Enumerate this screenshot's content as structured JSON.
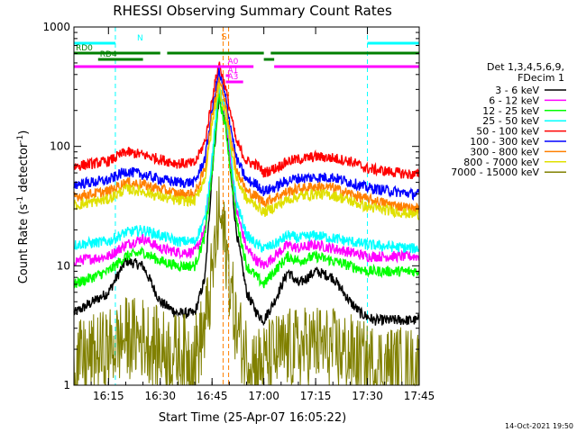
{
  "chart_data": {
    "type": "line",
    "title": "RHESSI Observing Summary Count Rates",
    "xlabel": "Start Time (25-Apr-07 16:05:22)",
    "ylabel_main": "Count Rate (s",
    "ylabel_sup1": "-1",
    "ylabel_mid": " detector",
    "ylabel_sup2": "-1",
    "ylabel_end": ")",
    "x_range_min": [
      965,
      1065
    ],
    "y_log_range": [
      1,
      1000
    ],
    "xticks": [
      {
        "m": 975,
        "label": "16:15"
      },
      {
        "m": 990,
        "label": "16:30"
      },
      {
        "m": 1005,
        "label": "16:45"
      },
      {
        "m": 1020,
        "label": "17:00"
      },
      {
        "m": 1035,
        "label": "17:15"
      },
      {
        "m": 1050,
        "label": "17:30"
      },
      {
        "m": 1065,
        "label": "17:45"
      }
    ],
    "yticks": [
      {
        "v": 1,
        "label": "1"
      },
      {
        "v": 10,
        "label": "10"
      },
      {
        "v": 100,
        "label": "100"
      },
      {
        "v": 1000,
        "label": "1000"
      }
    ],
    "legend_header": [
      "Det 1,3,4,5,6,9,",
      "FDecim 1"
    ],
    "series": [
      {
        "name": "3 - 6 keV",
        "color": "#000000",
        "pts": [
          [
            965,
            4
          ],
          [
            975,
            6
          ],
          [
            980,
            11
          ],
          [
            985,
            10
          ],
          [
            990,
            5
          ],
          [
            995,
            4
          ],
          [
            1000,
            4
          ],
          [
            1003,
            8
          ],
          [
            1005,
            60
          ],
          [
            1007,
            250
          ],
          [
            1009,
            150
          ],
          [
            1012,
            20
          ],
          [
            1015,
            6
          ],
          [
            1018,
            4
          ],
          [
            1020,
            3.5
          ],
          [
            1023,
            5
          ],
          [
            1027,
            9
          ],
          [
            1030,
            7
          ],
          [
            1035,
            9
          ],
          [
            1040,
            8
          ],
          [
            1045,
            5
          ],
          [
            1048,
            4
          ],
          [
            1052,
            3.5
          ],
          [
            1063,
            3.5
          ]
        ]
      },
      {
        "name": "6 - 12 keV",
        "color": "#ff00ff",
        "pts": [
          [
            965,
            11
          ],
          [
            975,
            12
          ],
          [
            980,
            15
          ],
          [
            985,
            17
          ],
          [
            990,
            14
          ],
          [
            995,
            13
          ],
          [
            1000,
            13
          ],
          [
            1003,
            20
          ],
          [
            1005,
            70
          ],
          [
            1007,
            300
          ],
          [
            1009,
            170
          ],
          [
            1012,
            30
          ],
          [
            1015,
            14
          ],
          [
            1018,
            11
          ],
          [
            1020,
            10
          ],
          [
            1023,
            12
          ],
          [
            1027,
            15
          ],
          [
            1030,
            14
          ],
          [
            1035,
            15
          ],
          [
            1040,
            14
          ],
          [
            1045,
            13
          ],
          [
            1050,
            12
          ],
          [
            1063,
            12
          ]
        ]
      },
      {
        "name": "12 - 25 keV",
        "color": "#00ff00",
        "pts": [
          [
            965,
            7
          ],
          [
            975,
            9
          ],
          [
            980,
            12
          ],
          [
            985,
            13
          ],
          [
            990,
            11
          ],
          [
            995,
            10
          ],
          [
            1000,
            10
          ],
          [
            1003,
            18
          ],
          [
            1005,
            60
          ],
          [
            1007,
            260
          ],
          [
            1009,
            140
          ],
          [
            1012,
            25
          ],
          [
            1015,
            10
          ],
          [
            1018,
            8
          ],
          [
            1020,
            7
          ],
          [
            1023,
            9
          ],
          [
            1027,
            12
          ],
          [
            1030,
            11
          ],
          [
            1035,
            12
          ],
          [
            1040,
            11
          ],
          [
            1045,
            10
          ],
          [
            1050,
            9
          ],
          [
            1063,
            9
          ]
        ]
      },
      {
        "name": "25 - 50 keV",
        "color": "#00ffff",
        "pts": [
          [
            965,
            15
          ],
          [
            975,
            16
          ],
          [
            980,
            19
          ],
          [
            985,
            20
          ],
          [
            990,
            18
          ],
          [
            995,
            16
          ],
          [
            1000,
            16
          ],
          [
            1003,
            25
          ],
          [
            1005,
            80
          ],
          [
            1007,
            320
          ],
          [
            1009,
            180
          ],
          [
            1012,
            35
          ],
          [
            1015,
            18
          ],
          [
            1018,
            15
          ],
          [
            1020,
            14
          ],
          [
            1023,
            15
          ],
          [
            1027,
            18
          ],
          [
            1030,
            17
          ],
          [
            1035,
            18
          ],
          [
            1040,
            17
          ],
          [
            1045,
            16
          ],
          [
            1050,
            15
          ],
          [
            1063,
            14
          ]
        ]
      },
      {
        "name": "50 - 100 keV",
        "color": "#ff0000",
        "pts": [
          [
            965,
            68
          ],
          [
            975,
            75
          ],
          [
            980,
            90
          ],
          [
            985,
            85
          ],
          [
            990,
            78
          ],
          [
            995,
            72
          ],
          [
            1000,
            72
          ],
          [
            1003,
            110
          ],
          [
            1005,
            250
          ],
          [
            1007,
            500
          ],
          [
            1009,
            300
          ],
          [
            1012,
            110
          ],
          [
            1015,
            75
          ],
          [
            1018,
            70
          ],
          [
            1020,
            60
          ],
          [
            1023,
            65
          ],
          [
            1027,
            75
          ],
          [
            1030,
            78
          ],
          [
            1035,
            82
          ],
          [
            1040,
            80
          ],
          [
            1045,
            75
          ],
          [
            1050,
            65
          ],
          [
            1063,
            58
          ]
        ]
      },
      {
        "name": "100 - 300 keV",
        "color": "#0000ff",
        "pts": [
          [
            965,
            48
          ],
          [
            975,
            52
          ],
          [
            980,
            62
          ],
          [
            985,
            58
          ],
          [
            990,
            53
          ],
          [
            995,
            50
          ],
          [
            1000,
            50
          ],
          [
            1003,
            80
          ],
          [
            1005,
            200
          ],
          [
            1007,
            420
          ],
          [
            1009,
            250
          ],
          [
            1012,
            80
          ],
          [
            1015,
            52
          ],
          [
            1018,
            48
          ],
          [
            1020,
            42
          ],
          [
            1023,
            45
          ],
          [
            1027,
            52
          ],
          [
            1030,
            54
          ],
          [
            1035,
            55
          ],
          [
            1040,
            55
          ],
          [
            1045,
            50
          ],
          [
            1050,
            45
          ],
          [
            1063,
            40
          ]
        ]
      },
      {
        "name": "300 - 800 keV",
        "color": "#ff8000",
        "pts": [
          [
            965,
            38
          ],
          [
            975,
            42
          ],
          [
            980,
            50
          ],
          [
            985,
            48
          ],
          [
            990,
            44
          ],
          [
            995,
            40
          ],
          [
            1000,
            40
          ],
          [
            1003,
            65
          ],
          [
            1005,
            180
          ],
          [
            1007,
            380
          ],
          [
            1009,
            220
          ],
          [
            1012,
            65
          ],
          [
            1015,
            42
          ],
          [
            1018,
            38
          ],
          [
            1020,
            34
          ],
          [
            1023,
            37
          ],
          [
            1027,
            42
          ],
          [
            1030,
            44
          ],
          [
            1035,
            46
          ],
          [
            1040,
            45
          ],
          [
            1045,
            40
          ],
          [
            1050,
            36
          ],
          [
            1063,
            30
          ]
        ]
      },
      {
        "name": "800 - 7000 keV",
        "color": "#e0e000",
        "pts": [
          [
            965,
            32
          ],
          [
            975,
            36
          ],
          [
            980,
            44
          ],
          [
            985,
            42
          ],
          [
            990,
            38
          ],
          [
            995,
            35
          ],
          [
            1000,
            35
          ],
          [
            1003,
            55
          ],
          [
            1005,
            150
          ],
          [
            1007,
            320
          ],
          [
            1009,
            180
          ],
          [
            1012,
            55
          ],
          [
            1015,
            36
          ],
          [
            1018,
            32
          ],
          [
            1020,
            28
          ],
          [
            1023,
            31
          ],
          [
            1027,
            36
          ],
          [
            1030,
            38
          ],
          [
            1035,
            40
          ],
          [
            1040,
            39
          ],
          [
            1045,
            35
          ],
          [
            1050,
            31
          ],
          [
            1063,
            27
          ]
        ]
      },
      {
        "name": "7000 - 15000 keV",
        "color": "#808000",
        "pts": [
          [
            965,
            1.5
          ],
          [
            975,
            2
          ],
          [
            980,
            2.5
          ],
          [
            985,
            2.5
          ],
          [
            990,
            2
          ],
          [
            995,
            1.8
          ],
          [
            1000,
            1.8
          ],
          [
            1003,
            3
          ],
          [
            1005,
            8
          ],
          [
            1007,
            28
          ],
          [
            1009,
            14
          ],
          [
            1012,
            3
          ],
          [
            1015,
            1.8
          ],
          [
            1018,
            1.5
          ],
          [
            1020,
            1.5
          ],
          [
            1023,
            1.8
          ],
          [
            1027,
            2
          ],
          [
            1030,
            2
          ],
          [
            1035,
            2.2
          ],
          [
            1040,
            2
          ],
          [
            1045,
            1.8
          ],
          [
            1050,
            1.5
          ],
          [
            1063,
            1.4
          ]
        ]
      }
    ],
    "flags": [
      {
        "label": "N",
        "color": "#00ffff",
        "y": 48,
        "segs": [
          [
            965,
            977
          ],
          [
            1050,
            1065
          ]
        ]
      },
      {
        "label": "RD0",
        "color": "#008000",
        "y": 59,
        "segs": [
          [
            965,
            990
          ],
          [
            992,
            1020
          ],
          [
            1022,
            1065
          ]
        ]
      },
      {
        "label": "RD4",
        "color": "#008000",
        "y": 66,
        "segs": [
          [
            972,
            985
          ],
          [
            1020,
            1023
          ]
        ]
      },
      {
        "label": "",
        "color": "#ff00ff",
        "y": 74,
        "segs": [
          [
            965,
            1017
          ],
          [
            1023,
            1065
          ]
        ]
      },
      {
        "label": "A1",
        "color": "#ff00ff",
        "y": 84,
        "segs": [
          [
            1009,
            1010
          ]
        ]
      },
      {
        "label": "A0",
        "color": "#ff00ff",
        "y": 74,
        "segs": [
          [
            1009,
            1010
          ]
        ]
      },
      {
        "label": "A3",
        "color": "#ff00ff",
        "y": 91,
        "segs": [
          [
            1009,
            1014
          ]
        ]
      }
    ],
    "saa_label": "S",
    "vlines_cyan": [
      977,
      1050,
      1065
    ],
    "vlines_orange": [
      1008.2,
      1009.8
    ],
    "footer_date": "14-Oct-2021 19:50"
  }
}
